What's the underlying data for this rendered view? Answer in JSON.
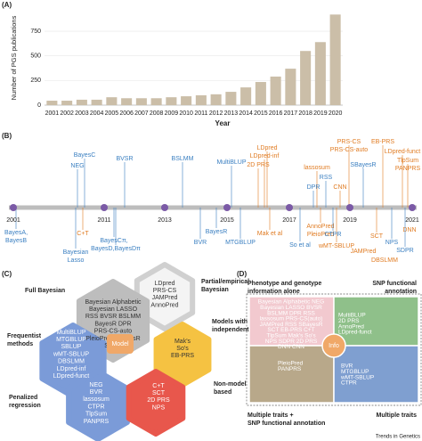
{
  "chart_data": {
    "type": "bar",
    "label": "(A)",
    "ylabel": "Number of PGS publications",
    "xlabel": "Year",
    "categories": [
      "2001",
      "2002",
      "2003",
      "2004",
      "2005",
      "2006",
      "2007",
      "2008",
      "2009",
      "2010",
      "2011",
      "2012",
      "2013",
      "2014",
      "2015",
      "2016",
      "2017",
      "2018",
      "2019",
      "2020"
    ],
    "values": [
      45,
      45,
      55,
      55,
      80,
      70,
      70,
      70,
      80,
      90,
      100,
      110,
      135,
      180,
      235,
      290,
      370,
      550,
      640,
      920
    ],
    "color": "#cbbea8",
    "ylim": [
      0,
      950
    ],
    "yticks": [
      0,
      250,
      500,
      750
    ],
    "grid": true
  },
  "timeline": {
    "label": "(B)",
    "years": [
      2001,
      2011,
      2013,
      2015,
      2017,
      2019,
      2021
    ],
    "methods": [
      "BayesC",
      "NEG",
      "BVSR",
      "BSLMM",
      "MultiBLUP",
      "LDpred",
      "LDpred-inf",
      "2D PRS",
      "lassosum",
      "RSS",
      "DPR",
      "CNN",
      "PRS-CS",
      "PRS-CS-auto",
      "SBayesR",
      "EB-PRS",
      "LDpred-funct",
      "TlpSum",
      "PANPRS",
      "BayesA,",
      "BayesB",
      "C+T",
      "Bayesian",
      "Lasso",
      "BayesCπ,",
      "BayesD,BayesDπ",
      "BVR",
      "BayesR",
      "MTGBLUP",
      "Mak et al",
      "So et al",
      "AnnoPred",
      "PleioPred",
      "wMT-SBLUP",
      "CTPR",
      "JAMPred",
      "SCT",
      "DBSLMM",
      "NPS",
      "DNN",
      "SDPR"
    ]
  },
  "panel_c": {
    "label": "(C)",
    "center": "Model",
    "groups": [
      {
        "name": [
          "Partial/empirical",
          "Bayesian"
        ],
        "methods": [
          "LDpred",
          "PRS-CS",
          "JAMPred",
          "AnnoPred"
        ]
      },
      {
        "name": [
          "Full Bayesian"
        ],
        "methods": [
          "Bayesian Alphabetic",
          "Bayesian LASSO",
          "RSS BVSR BSLMM",
          "BayesR DPR",
          "PRS-CS-auto",
          "PleioPred SBayesR",
          "SDPR"
        ]
      },
      {
        "name": [
          "Frequentist",
          "methods"
        ],
        "methods": [
          "MultiBLUP",
          "MTGBLUP",
          "SBLUP",
          "wMT-SBLUP",
          "DBSLMM",
          "LDpred-inf",
          "LDpred-funct"
        ]
      },
      {
        "name": [
          "Models with",
          "independent LD"
        ],
        "methods": [
          "Mak's",
          "So's",
          "EB-PRS"
        ]
      },
      {
        "name": [
          "Penalized",
          "regression"
        ],
        "methods": [
          "NEG",
          "BVR",
          "lassosum",
          "CTPR",
          "TlpSum",
          "PANPRS"
        ]
      },
      {
        "name": [
          "Non-model",
          "based"
        ],
        "methods": [
          "C+T",
          "SCT",
          "2D PRS",
          "NPS"
        ]
      }
    ]
  },
  "panel_d": {
    "label": "(D)",
    "center": "Info",
    "groups": [
      {
        "name": [
          "Phenotype and genotype",
          "information alone"
        ],
        "methods": [
          "Bayesian Alphabetic  NEG",
          "Bayesian LASSO  BVSR",
          "BSLMM  DPR  RSS",
          "lassosum  PRS-CS(auto)",
          "JAMPred  RSS  SBayesR",
          "SCT  EB-PRS  C+T",
          "TlpSum  Mak's  So's",
          "NPS  SDPR  2D PRS",
          "DNN  CNN"
        ]
      },
      {
        "name": [
          "SNP functional",
          "annotation"
        ],
        "methods": [
          "MultiBLUP",
          "2D PRS",
          "AnnoPred",
          "LDpred-funct"
        ]
      },
      {
        "name": [
          "Multiple traits +",
          "SNP functional annotation"
        ],
        "methods": [
          "PleioPred",
          "PANPRS"
        ]
      },
      {
        "name": [
          "Multiple traits"
        ],
        "methods": [
          "BVR",
          "MTGBLUP",
          "wMT-SBLUP",
          "CTPR"
        ]
      }
    ]
  },
  "footer": "Trends in Genetics"
}
